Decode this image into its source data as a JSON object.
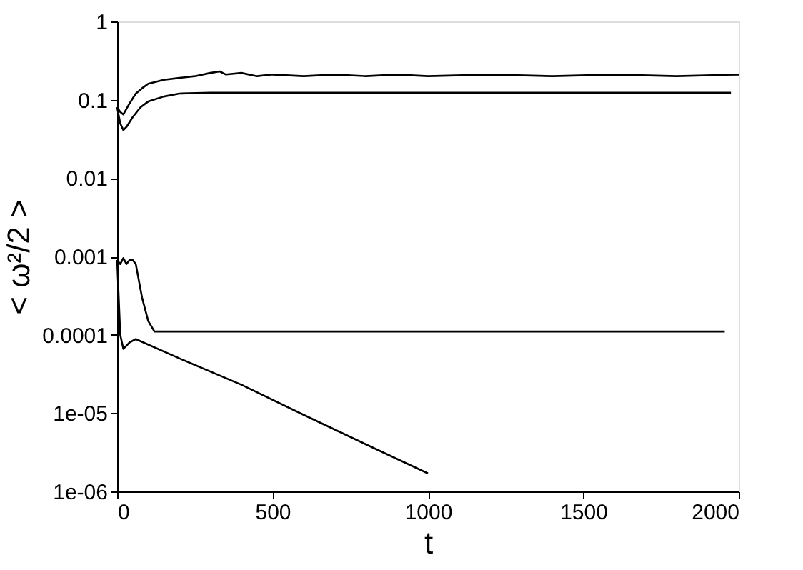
{
  "chart_data": {
    "type": "line",
    "xlabel": "t",
    "ylabel": "< ω²/2 >",
    "log": "y",
    "xlim": [
      0,
      2000
    ],
    "xticks": [
      0,
      500,
      1000,
      1500,
      2000
    ],
    "ylim": [
      1e-06,
      1
    ],
    "yticks": [
      1,
      0.1,
      0.01,
      0.001,
      0.0001,
      {
        "value": 1e-05,
        "label": "1e-05"
      },
      {
        "value": 1e-06,
        "label": "1e-06"
      }
    ],
    "grid": false,
    "marker": "none",
    "line_style": "solid",
    "series": [
      {
        "color": "#000000",
        "x": [
          0,
          10,
          20,
          40,
          60,
          80,
          100,
          150,
          200,
          250,
          300,
          330,
          350,
          400,
          450,
          500,
          600,
          700,
          800,
          900,
          1000,
          1200,
          1400,
          1600,
          1800,
          2000
        ],
        "values": [
          0.08,
          0.07,
          0.065,
          0.09,
          0.12,
          0.14,
          0.16,
          0.18,
          0.19,
          0.2,
          0.22,
          0.23,
          0.21,
          0.22,
          0.2,
          0.21,
          0.2,
          0.21,
          0.2,
          0.21,
          0.2,
          0.21,
          0.2,
          0.21,
          0.2,
          0.21
        ]
      },
      {
        "color": "#000000",
        "x": [
          0,
          10,
          20,
          30,
          50,
          75,
          100,
          150,
          200,
          300,
          500,
          1000,
          1500,
          1975
        ],
        "values": [
          0.08,
          0.05,
          0.041,
          0.045,
          0.06,
          0.08,
          0.095,
          0.11,
          0.12,
          0.123,
          0.123,
          0.123,
          0.123,
          0.123
        ]
      },
      {
        "color": "#000000",
        "x": [
          0,
          10,
          20,
          30,
          40,
          50,
          60,
          80,
          100,
          120,
          150,
          500,
          1000,
          1500,
          1955
        ],
        "values": [
          0.0009,
          0.0008,
          0.00095,
          0.0008,
          0.0009,
          0.0009,
          0.0008,
          0.0003,
          0.00015,
          0.00011,
          0.00011,
          0.00011,
          0.00011,
          0.00011,
          0.00011
        ]
      },
      {
        "color": "#000000",
        "x": [
          0,
          5,
          10,
          20,
          40,
          60,
          200,
          400,
          600,
          800,
          1000
        ],
        "values": [
          0.0009,
          0.0003,
          0.0001,
          6.6e-05,
          8e-05,
          8.8e-05,
          5e-05,
          2.3e-05,
          9.5e-06,
          4e-06,
          1.7e-06
        ]
      }
    ]
  }
}
